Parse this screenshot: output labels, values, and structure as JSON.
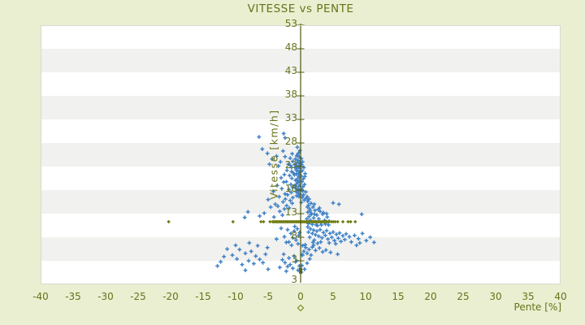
{
  "page": {
    "background": "#e9efd0"
  },
  "chart_data": {
    "type": "scatter",
    "title": "VITESSE vs PENTE",
    "xlabel": "Pente [%]",
    "ylabel": "Vitesse [km/h]",
    "xlim": [
      -40,
      40
    ],
    "ylim": [
      -2,
      53
    ],
    "x_ticks": [
      -40,
      -35,
      -30,
      -25,
      -20,
      -15,
      -10,
      -5,
      0,
      5,
      10,
      15,
      20,
      25,
      30,
      35,
      40
    ],
    "y_ticks": [
      53,
      48,
      43,
      38,
      33,
      28,
      23,
      18,
      13,
      8,
      3
    ],
    "y_axis_extra_bottom_label": "3",
    "y_axis_drawn_at_x": 0,
    "grid": "alternating horizontal bands every 5 units, no vertical gridlines",
    "legend": "none",
    "colors": {
      "background": "#e9efd0",
      "plot_background": "#ffffff",
      "band_shade": "#f1f1ef",
      "plot_border": "#d9d9d5",
      "axis_line": "#4d580c",
      "text": "#67731b",
      "series_vitesse": "#3f81c6",
      "series_pente_markers": "#6f7d10"
    },
    "series": [
      {
        "name": "vitesse",
        "marker": "plus",
        "color": "#3f81c6",
        "points": [
          [
            -0.1,
            26.4
          ],
          [
            -0.3,
            25.9
          ],
          [
            -0.6,
            25.3
          ],
          [
            -0.2,
            25
          ],
          [
            -0.8,
            24.6
          ],
          [
            -0.4,
            24.3
          ],
          [
            -0.15,
            24
          ],
          [
            -0.55,
            23.7
          ],
          [
            -0.9,
            23.4
          ],
          [
            -0.25,
            23.2
          ],
          [
            -0.5,
            22.9
          ],
          [
            -0.1,
            22.6
          ],
          [
            -0.7,
            22.3
          ],
          [
            -0.35,
            22
          ],
          [
            -0.15,
            21.8
          ],
          [
            -0.6,
            21.5
          ],
          [
            -0.95,
            21.2
          ],
          [
            -0.3,
            21
          ],
          [
            -0.1,
            20.7
          ],
          [
            -0.5,
            20.4
          ],
          [
            -0.8,
            20.1
          ],
          [
            -0.2,
            19.9
          ],
          [
            -0.4,
            19.6
          ],
          [
            -0.65,
            19.3
          ],
          [
            -0.1,
            19.1
          ],
          [
            -0.3,
            18.8
          ],
          [
            -0.85,
            18.5
          ],
          [
            -0.5,
            18.2
          ],
          [
            -0.2,
            18
          ],
          [
            -0.7,
            17.7
          ],
          [
            -0.4,
            17.4
          ],
          [
            -0.1,
            17.1
          ],
          [
            -0.6,
            16.8
          ],
          [
            -0.25,
            16.6
          ],
          [
            -0.45,
            25.6
          ],
          [
            -0.75,
            23
          ],
          [
            -0.2,
            21.4
          ],
          [
            -0.55,
            20
          ],
          [
            -0.9,
            18.9
          ],
          [
            -0.35,
            17.9
          ],
          [
            -0.65,
            22.6
          ],
          [
            -0.15,
            23.9
          ],
          [
            -0.5,
            27.1
          ],
          [
            -1.3,
            25.7
          ],
          [
            -1.6,
            24.8
          ],
          [
            -1.2,
            24.1
          ],
          [
            -1.9,
            23.5
          ],
          [
            -1.4,
            22.8
          ],
          [
            -2.1,
            22.2
          ],
          [
            -1.15,
            21.7
          ],
          [
            -1.7,
            21.1
          ],
          [
            -1.35,
            20.5
          ],
          [
            -2.2,
            19.8
          ],
          [
            -1.5,
            19.2
          ],
          [
            -1.25,
            18.6
          ],
          [
            -1.8,
            18.1
          ],
          [
            -1.45,
            17.5
          ],
          [
            -2,
            17
          ],
          [
            -1.2,
            16.4
          ],
          [
            -1.6,
            15.8
          ],
          [
            -1.3,
            15.2
          ],
          [
            -2.15,
            14.7
          ],
          [
            -1.75,
            14.2
          ],
          [
            -1.4,
            21.9
          ],
          [
            -1.55,
            23.2
          ],
          [
            -2.6,
            30
          ],
          [
            -2.4,
            29.1
          ],
          [
            -6.4,
            29.3
          ],
          [
            -5.9,
            26.7
          ],
          [
            -5.1,
            25.8
          ],
          [
            -4.4,
            24.6
          ],
          [
            -3.7,
            25.2
          ],
          [
            -3.1,
            24
          ],
          [
            -2.7,
            26.3
          ],
          [
            -2.4,
            25.1
          ],
          [
            -3.4,
            23.1
          ],
          [
            -4.8,
            23.5
          ],
          [
            0.1,
            24.7
          ],
          [
            0.3,
            24
          ],
          [
            0.15,
            23.4
          ],
          [
            0.5,
            22.8
          ],
          [
            0.25,
            22.1
          ],
          [
            0.7,
            21.5
          ],
          [
            0.1,
            21
          ],
          [
            0.4,
            20.4
          ],
          [
            0.2,
            19.8
          ],
          [
            0.6,
            19.2
          ],
          [
            0.35,
            18.7
          ],
          [
            0.15,
            18.1
          ],
          [
            0.8,
            17.6
          ],
          [
            0.45,
            17
          ],
          [
            0.25,
            16.5
          ],
          [
            0.55,
            15.9
          ],
          [
            0.1,
            15.4
          ],
          [
            0.65,
            20.9
          ],
          [
            0.3,
            17.8
          ],
          [
            0.85,
            16.2
          ],
          [
            1,
            16.6
          ],
          [
            1.3,
            16.1
          ],
          [
            1.1,
            15.6
          ],
          [
            1.6,
            15.2
          ],
          [
            1.2,
            14.8
          ],
          [
            1.9,
            14.4
          ],
          [
            1.4,
            14
          ],
          [
            2.2,
            13.7
          ],
          [
            1.1,
            13.3
          ],
          [
            1.7,
            13
          ],
          [
            2.5,
            12.7
          ],
          [
            1.3,
            12.4
          ],
          [
            2,
            12.1
          ],
          [
            2.8,
            11.9
          ],
          [
            1.5,
            11.6
          ],
          [
            2.3,
            11.3
          ],
          [
            3.1,
            11.1
          ],
          [
            1.2,
            10.9
          ],
          [
            1.8,
            10.7
          ],
          [
            2.6,
            10.5
          ],
          [
            3.4,
            12.9
          ],
          [
            3,
            13.5
          ],
          [
            3.7,
            11.6
          ],
          [
            2.1,
            15
          ],
          [
            2.9,
            14.2
          ],
          [
            3.5,
            13.2
          ],
          [
            4.1,
            12.3
          ],
          [
            3.8,
            10.8
          ],
          [
            4.4,
            11.4
          ],
          [
            2.4,
            10.6
          ],
          [
            1.6,
            12.9
          ],
          [
            2.7,
            13.9
          ],
          [
            3.2,
            10.6
          ],
          [
            4,
            13
          ],
          [
            1.05,
            14.4
          ],
          [
            1.45,
            13.6
          ],
          [
            2.15,
            12.9
          ],
          [
            0.95,
            11.9
          ],
          [
            1.75,
            11.2
          ],
          [
            4.3,
            10.6
          ],
          [
            5,
            15.3
          ],
          [
            5.9,
            15
          ],
          [
            9.4,
            12.9
          ],
          [
            1.1,
            10.2
          ],
          [
            1.5,
            9.8
          ],
          [
            2,
            9.5
          ],
          [
            1.2,
            9.1
          ],
          [
            2.5,
            9.3
          ],
          [
            3,
            9.6
          ],
          [
            1.8,
            8.8
          ],
          [
            2.3,
            8.5
          ],
          [
            3.5,
            9
          ],
          [
            2.8,
            8.2
          ],
          [
            4,
            9.4
          ],
          [
            3.3,
            7.9
          ],
          [
            1.4,
            8
          ],
          [
            4.5,
            8.8
          ],
          [
            3.8,
            8.4
          ],
          [
            5,
            9.1
          ],
          [
            4.2,
            7.6
          ],
          [
            5.5,
            8.6
          ],
          [
            2.1,
            7.4
          ],
          [
            4.8,
            8
          ],
          [
            6,
            8.9
          ],
          [
            5.2,
            7.3
          ],
          [
            3.1,
            7
          ],
          [
            6.5,
            8.3
          ],
          [
            5.8,
            7.8
          ],
          [
            7,
            8.7
          ],
          [
            6.2,
            7.1
          ],
          [
            2.6,
            6.7
          ],
          [
            7.5,
            8.1
          ],
          [
            6.8,
            7.5
          ],
          [
            4.4,
            6.8
          ],
          [
            7.8,
            7
          ],
          [
            1.9,
            6.9
          ],
          [
            5.4,
            6.6
          ],
          [
            8.3,
            8.4
          ],
          [
            8.9,
            7.7
          ],
          [
            9.5,
            8.8
          ],
          [
            9.1,
            6.8
          ],
          [
            10.1,
            7.3
          ],
          [
            10.7,
            8
          ],
          [
            11.3,
            6.9
          ],
          [
            8.6,
            6.3
          ],
          [
            0.3,
            6.2
          ],
          [
            0.8,
            5.8
          ],
          [
            1.3,
            5.4
          ],
          [
            0.5,
            5
          ],
          [
            1.8,
            5.9
          ],
          [
            2.3,
            5.2
          ],
          [
            1,
            4.6
          ],
          [
            2.9,
            5.7
          ],
          [
            3.4,
            4.9
          ],
          [
            0.2,
            4.3
          ],
          [
            1.6,
            4.2
          ],
          [
            2,
            6.3
          ],
          [
            3.9,
            5.3
          ],
          [
            0.7,
            6.4
          ],
          [
            4.6,
            4.8
          ],
          [
            5.7,
            4.4
          ],
          [
            -2.5,
            21.3
          ],
          [
            -3,
            20.6
          ],
          [
            -2.6,
            19.7
          ],
          [
            -3.6,
            19
          ],
          [
            -2.9,
            18.3
          ],
          [
            -4.2,
            17.7
          ],
          [
            -2.4,
            17.2
          ],
          [
            -3.3,
            16.6
          ],
          [
            -5,
            16
          ],
          [
            -2.7,
            15.5
          ],
          [
            -3.9,
            15
          ],
          [
            -4.6,
            14.4
          ],
          [
            -2.5,
            14
          ],
          [
            -3.2,
            13.5
          ],
          [
            -5.6,
            13.1
          ],
          [
            -2.8,
            12.7
          ],
          [
            -4.1,
            12.3
          ],
          [
            -6.3,
            12.5
          ],
          [
            -8.6,
            12.2
          ],
          [
            -8.1,
            13.4
          ],
          [
            -3.5,
            14.6
          ],
          [
            -2.35,
            16.1
          ],
          [
            -11.3,
            5.5
          ],
          [
            -9.4,
            5.4
          ],
          [
            -12.3,
            2.8
          ],
          [
            -10.5,
            4.2
          ],
          [
            -9.8,
            3.4
          ],
          [
            -8.5,
            4.6
          ],
          [
            -8,
            3
          ],
          [
            -7.2,
            2.4
          ],
          [
            -10,
            6.3
          ],
          [
            -12.8,
            1.9
          ],
          [
            -7.6,
            5
          ],
          [
            -6.9,
            4
          ],
          [
            -6.3,
            3.3
          ],
          [
            -5.8,
            2.6
          ],
          [
            -6.6,
            6.2
          ],
          [
            -5.4,
            4.4
          ],
          [
            -7.9,
            6.8
          ],
          [
            -9,
            2.2
          ],
          [
            -11.8,
            3.9
          ],
          [
            -5.1,
            5.8
          ],
          [
            -2.8,
            3.2
          ],
          [
            -2.4,
            2.6
          ],
          [
            -2,
            1.8
          ],
          [
            -1.6,
            2.2
          ],
          [
            -1.2,
            1.4
          ],
          [
            -0.8,
            2.8
          ],
          [
            -0.4,
            1
          ],
          [
            -2.6,
            4.4
          ],
          [
            -1.8,
            3.6
          ],
          [
            -1,
            4
          ],
          [
            -0.6,
            3
          ],
          [
            0.2,
            2
          ],
          [
            0.6,
            1.2
          ],
          [
            1,
            2.5
          ],
          [
            -3.2,
            1.6
          ],
          [
            -2.2,
            0.8
          ],
          [
            0.3,
            4.2
          ],
          [
            1.4,
            3.4
          ],
          [
            -5,
            1.2
          ],
          [
            -8.5,
            1
          ],
          [
            0.1,
            0.6
          ],
          [
            -0.2,
            1.9
          ],
          [
            -0.5,
            9.8
          ],
          [
            -1,
            9.3
          ],
          [
            -1.5,
            8.8
          ],
          [
            -0.3,
            8.4
          ],
          [
            -2,
            9.6
          ],
          [
            -1.2,
            7.9
          ],
          [
            -0.7,
            7.4
          ],
          [
            -2.5,
            8.1
          ],
          [
            -1.8,
            7
          ],
          [
            -0.4,
            6.6
          ],
          [
            -3,
            9.9
          ],
          [
            -1.4,
            6.3
          ],
          [
            -0.9,
            10.3
          ],
          [
            -2.2,
            6.9
          ],
          [
            -3.7,
            7.6
          ],
          [
            -0.15,
            9
          ]
        ]
      },
      {
        "name": "pente-row",
        "marker": "diamond",
        "color": "#6f7d10",
        "constant_y": 11.3,
        "x_values": [
          -20.3,
          -10.4,
          -6.1,
          -5.7,
          -4.7,
          -4.3,
          -4.1,
          -3.9,
          -3.7,
          -3.5,
          -3.3,
          -3.1,
          -2.9,
          -2.7,
          -2.5,
          -2.3,
          -2.1,
          -1.9,
          -1.7,
          -1.5,
          -1.3,
          -1.1,
          -0.9,
          -0.7,
          -0.5,
          -0.3,
          -0.1,
          0.1,
          0.3,
          0.5,
          0.7,
          0.9,
          1.1,
          1.3,
          1.5,
          1.7,
          1.9,
          2.1,
          2.3,
          2.5,
          2.7,
          2.9,
          3.1,
          3.3,
          3.5,
          3.7,
          3.9,
          4.1,
          4.3,
          4.7,
          5,
          5.3,
          5.7,
          6.5,
          7.3,
          7.7,
          8.4
        ]
      }
    ],
    "axis_marker": {
      "x": 0,
      "y": 0.9,
      "shape": "square",
      "color": "#5d680f"
    }
  }
}
